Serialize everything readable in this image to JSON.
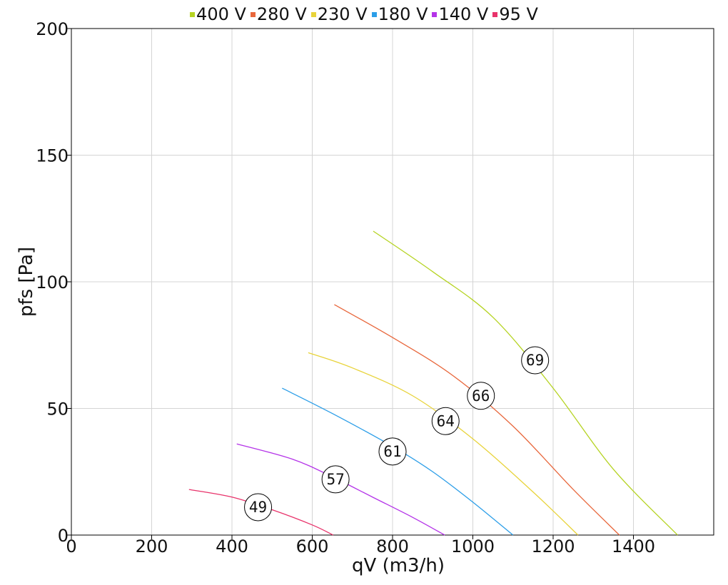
{
  "chart_data": {
    "type": "line",
    "title": "",
    "xlabel": "qV (m3/h)",
    "ylabel": "pfs [Pa]",
    "xlim": [
      0,
      1600
    ],
    "ylim": [
      0,
      200
    ],
    "x_ticks": [
      "0",
      "200",
      "400",
      "600",
      "800",
      "1000",
      "1200",
      "1400"
    ],
    "y_ticks": [
      "0",
      "50",
      "100",
      "150",
      "200"
    ],
    "grid": true,
    "legend_placement": "top-center",
    "series": [
      {
        "name": "400 V",
        "color": "#b5d321",
        "x": [
          752,
          900,
          1050,
          1200,
          1350,
          1510
        ],
        "y": [
          120,
          104,
          86,
          58,
          26,
          0
        ],
        "marker": {
          "label": "69",
          "x": 1155,
          "y": 69
        }
      },
      {
        "name": "280 V",
        "color": "#e8673c",
        "x": [
          655,
          800,
          950,
          1100,
          1250,
          1365
        ],
        "y": [
          91,
          78,
          63,
          43,
          18,
          0
        ],
        "marker": {
          "label": "66",
          "x": 1020,
          "y": 55
        }
      },
      {
        "name": "230 V",
        "color": "#e8d33a",
        "x": [
          590,
          700,
          850,
          1000,
          1150,
          1262
        ],
        "y": [
          72,
          66,
          55,
          38,
          17,
          0
        ],
        "marker": {
          "label": "64",
          "x": 932,
          "y": 45
        }
      },
      {
        "name": "180 V",
        "color": "#2c9ee8",
        "x": [
          525,
          650,
          800,
          900,
          1000,
          1100
        ],
        "y": [
          58,
          48,
          35,
          25,
          13,
          0
        ],
        "marker": {
          "label": "61",
          "x": 800,
          "y": 33
        }
      },
      {
        "name": "140 V",
        "color": "#b433e8",
        "x": [
          412,
          550,
          650,
          750,
          850,
          930
        ],
        "y": [
          36,
          30,
          23,
          15,
          7,
          0
        ],
        "marker": {
          "label": "57",
          "x": 658,
          "y": 22
        }
      },
      {
        "name": "95 V",
        "color": "#e8336b",
        "x": [
          293,
          400,
          500,
          600,
          652
        ],
        "y": [
          18,
          15,
          10,
          4,
          0
        ],
        "marker": {
          "label": "49",
          "x": 465,
          "y": 11
        }
      }
    ]
  }
}
